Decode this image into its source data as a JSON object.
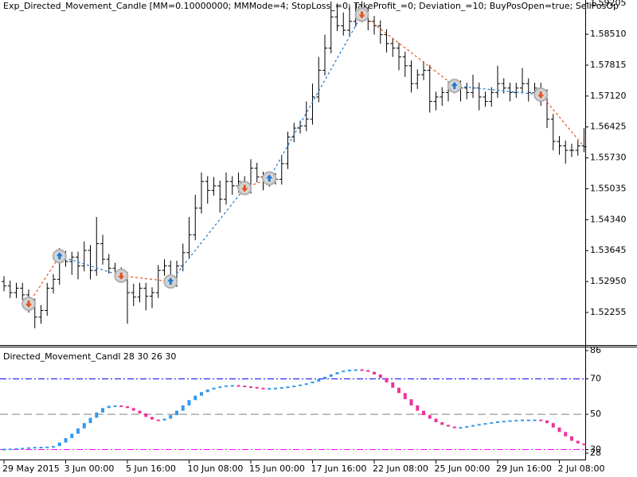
{
  "chart_data": [
    {
      "type": "ohlc",
      "title": "Exp_Directed_Movement_Candle [MM=0.10000000; MMMode=4; StopLoss_=0; TakeProfit_=0; Deviation_=10; BuyPosOpen=true; SellPosOp",
      "color": "#000000",
      "categories": [
        "29 May 2015",
        null,
        null,
        null,
        null,
        null,
        null,
        null,
        null,
        null,
        "3 Jun 00:00",
        null,
        null,
        null,
        null,
        null,
        null,
        null,
        null,
        null,
        "5 Jun 16:00",
        null,
        null,
        null,
        null,
        null,
        null,
        null,
        null,
        null,
        "10 Jun 08:00",
        null,
        null,
        null,
        null,
        null,
        null,
        null,
        null,
        null,
        "15 Jun 00:00",
        null,
        null,
        null,
        null,
        null,
        null,
        null,
        null,
        null,
        "17 Jun 16:00",
        null,
        null,
        null,
        null,
        null,
        null,
        null,
        null,
        null,
        "22 Jun 08:00",
        null,
        null,
        null,
        null,
        null,
        null,
        null,
        null,
        null,
        "25 Jun 00:00",
        null,
        null,
        null,
        null,
        null,
        null,
        null,
        null,
        null,
        "29 Jun 16:00",
        null,
        null,
        null,
        null,
        null,
        null,
        null,
        null,
        null,
        "2 Jul 08:00",
        null,
        null,
        null,
        null
      ],
      "open": [
        1.5295,
        1.5285,
        1.527,
        1.528,
        1.5265,
        1.5245,
        1.5215,
        1.523,
        1.528,
        1.53,
        1.5352,
        1.534,
        1.535,
        1.533,
        1.5365,
        1.532,
        1.538,
        1.5345,
        1.5325,
        1.5315,
        1.5305,
        1.527,
        1.526,
        1.528,
        1.5262,
        1.527,
        1.532,
        1.533,
        1.5295,
        1.533,
        1.536,
        1.54,
        1.546,
        1.552,
        1.55,
        1.551,
        1.548,
        1.552,
        1.551,
        1.552,
        1.5505,
        1.555,
        1.553,
        1.552,
        1.5527,
        1.5525,
        1.556,
        1.562,
        1.564,
        1.5645,
        1.566,
        1.571,
        1.577,
        1.582,
        1.589,
        1.587,
        1.586,
        1.588,
        1.589,
        1.59,
        1.588,
        1.587,
        1.585,
        1.583,
        1.582,
        1.58,
        1.578,
        1.574,
        1.576,
        1.577,
        1.57,
        1.571,
        1.572,
        1.573,
        1.5735,
        1.573,
        1.572,
        1.573,
        1.571,
        1.57,
        1.572,
        1.574,
        1.573,
        1.572,
        1.573,
        1.574,
        1.572,
        1.573,
        1.5715,
        1.566,
        1.561,
        1.56,
        1.559,
        1.559,
        1.56
      ],
      "high": [
        1.5307,
        1.5297,
        1.5292,
        1.5292,
        1.5277,
        1.5257,
        1.5242,
        1.5292,
        1.5312,
        1.537,
        1.5364,
        1.5362,
        1.5362,
        1.5385,
        1.5377,
        1.544,
        1.54,
        1.5357,
        1.5337,
        1.5327,
        1.5317,
        1.529,
        1.5292,
        1.5292,
        1.5282,
        1.5332,
        1.5345,
        1.5342,
        1.5342,
        1.538,
        1.544,
        1.549,
        1.554,
        1.5532,
        1.553,
        1.5522,
        1.554,
        1.5532,
        1.554,
        1.5532,
        1.557,
        1.5562,
        1.5542,
        1.554,
        1.5539,
        1.558,
        1.5632,
        1.5652,
        1.5657,
        1.57,
        1.574,
        1.58,
        1.585,
        1.5925,
        1.592,
        1.59,
        1.5915,
        1.592,
        1.5925,
        1.5912,
        1.5892,
        1.5882,
        1.5862,
        1.5842,
        1.5832,
        1.5812,
        1.5792,
        1.5772,
        1.579,
        1.5782,
        1.5722,
        1.5732,
        1.5745,
        1.575,
        1.5747,
        1.5742,
        1.576,
        1.5742,
        1.5722,
        1.5732,
        1.578,
        1.5752,
        1.5742,
        1.5742,
        1.5775,
        1.5752,
        1.5742,
        1.5742,
        1.5727,
        1.5672,
        1.5622,
        1.5612,
        1.5605,
        1.5612,
        1.564
      ],
      "low": [
        1.5273,
        1.5258,
        1.5258,
        1.5253,
        1.5225,
        1.519,
        1.52,
        1.5218,
        1.5268,
        1.5288,
        1.5328,
        1.531,
        1.53,
        1.5318,
        1.53,
        1.5308,
        1.5333,
        1.5313,
        1.5303,
        1.5293,
        1.52,
        1.524,
        1.5248,
        1.523,
        1.5235,
        1.5258,
        1.5308,
        1.5283,
        1.5283,
        1.5318,
        1.5348,
        1.5388,
        1.5448,
        1.547,
        1.5488,
        1.545,
        1.5468,
        1.549,
        1.5495,
        1.549,
        1.5493,
        1.5518,
        1.55,
        1.5508,
        1.5513,
        1.5513,
        1.5548,
        1.5608,
        1.5628,
        1.5633,
        1.5648,
        1.5698,
        1.5758,
        1.5808,
        1.5858,
        1.5848,
        1.5848,
        1.5868,
        1.5878,
        1.586,
        1.585,
        1.583,
        1.581,
        1.58,
        1.577,
        1.5755,
        1.572,
        1.5728,
        1.5748,
        1.5675,
        1.568,
        1.569,
        1.57,
        1.5718,
        1.57,
        1.5705,
        1.5708,
        1.568,
        1.5688,
        1.5688,
        1.5708,
        1.5718,
        1.57,
        1.5708,
        1.5718,
        1.57,
        1.5708,
        1.569,
        1.564,
        1.559,
        1.558,
        1.556,
        1.5575,
        1.5578,
        1.5586
      ],
      "close": [
        1.5285,
        1.527,
        1.528,
        1.5265,
        1.5245,
        1.5215,
        1.523,
        1.528,
        1.53,
        1.5352,
        1.534,
        1.535,
        1.533,
        1.5365,
        1.532,
        1.538,
        1.5345,
        1.5325,
        1.5315,
        1.5305,
        1.527,
        1.526,
        1.528,
        1.5262,
        1.527,
        1.532,
        1.533,
        1.5295,
        1.533,
        1.536,
        1.54,
        1.546,
        1.552,
        1.55,
        1.551,
        1.548,
        1.552,
        1.551,
        1.552,
        1.5505,
        1.555,
        1.553,
        1.552,
        1.5527,
        1.5525,
        1.556,
        1.562,
        1.564,
        1.5645,
        1.566,
        1.571,
        1.577,
        1.582,
        1.589,
        1.587,
        1.586,
        1.588,
        1.589,
        1.59,
        1.588,
        1.587,
        1.585,
        1.583,
        1.582,
        1.58,
        1.578,
        1.574,
        1.576,
        1.577,
        1.57,
        1.571,
        1.572,
        1.573,
        1.5735,
        1.573,
        1.572,
        1.573,
        1.571,
        1.57,
        1.572,
        1.574,
        1.573,
        1.572,
        1.573,
        1.574,
        1.572,
        1.573,
        1.5715,
        1.566,
        1.561,
        1.56,
        1.559,
        1.559,
        1.56,
        1.5598
      ],
      "trades": [
        {
          "index": 4,
          "price": 1.5245,
          "side": "sell"
        },
        {
          "index": 9,
          "price": 1.5352,
          "side": "buy"
        },
        {
          "index": 19,
          "price": 1.5308,
          "side": "sell"
        },
        {
          "index": 27,
          "price": 1.5295,
          "side": "buy"
        },
        {
          "index": 39,
          "price": 1.5505,
          "side": "sell"
        },
        {
          "index": 43,
          "price": 1.5527,
          "side": "buy"
        },
        {
          "index": 58,
          "price": 1.5895,
          "side": "sell"
        },
        {
          "index": 73,
          "price": 1.5735,
          "side": "buy"
        },
        {
          "index": 87,
          "price": 1.5715,
          "side": "sell"
        }
      ],
      "buy_color": "#1e78d2",
      "sell_color": "#e8501e",
      "ylim": [
        1.5154,
        1.5928
      ],
      "yticks": [
        1.59205,
        {
          "value": 1.5851,
          "label": "1.58510"
        },
        1.57815,
        {
          "value": 1.5712,
          "label": "1.57120"
        },
        1.56425,
        {
          "value": 1.5573,
          "label": "1.55730"
        },
        1.55035,
        {
          "value": 1.5434,
          "label": "1.54340"
        },
        1.53645,
        {
          "value": 1.5295,
          "label": "1.52950"
        },
        1.52255
      ]
    },
    {
      "type": "candle-line",
      "title": "Directed_Movement_Candl 28 30 26 30",
      "values": [
        30.5,
        30.6,
        30.8,
        31,
        31.3,
        31.5,
        31.6,
        31.7,
        32,
        34,
        36.5,
        39,
        42,
        45,
        48,
        51,
        53.5,
        54.8,
        55,
        54.5,
        53.5,
        52,
        50.5,
        48.5,
        47,
        46.5,
        47.5,
        49.5,
        52,
        55,
        58,
        60.5,
        62.5,
        64,
        65,
        65.8,
        66.3,
        66.5,
        66.2,
        65.8,
        65.4,
        65,
        64.8,
        64.8,
        65,
        65.3,
        65.7,
        66.2,
        66.8,
        67.5,
        68.5,
        69.8,
        71.2,
        72.6,
        73.8,
        74.7,
        75.2,
        75.4,
        75,
        74,
        72.5,
        70.5,
        68,
        65,
        62,
        58.5,
        55,
        52,
        49.5,
        47.5,
        45.5,
        44,
        43,
        42.5,
        42.8,
        43.3,
        43.9,
        44.5,
        45,
        45.5,
        46,
        46.3,
        46.6,
        46.8,
        47,
        47,
        47,
        46.5,
        45,
        42.5,
        40,
        37.5,
        35,
        33.5,
        32.5
      ],
      "up_color": "#3399ee",
      "down_color": "#ee3399",
      "levels": [
        70,
        50,
        30
      ],
      "level_colors": [
        "#0000ff",
        "#808080",
        "#ff00ff"
      ],
      "level_styles": [
        "dash-dot",
        "dashed",
        "dash-dot"
      ],
      "ylim": [
        24.4,
        87.8
      ],
      "yticks": [
        86,
        70,
        50,
        30,
        28
      ]
    }
  ]
}
